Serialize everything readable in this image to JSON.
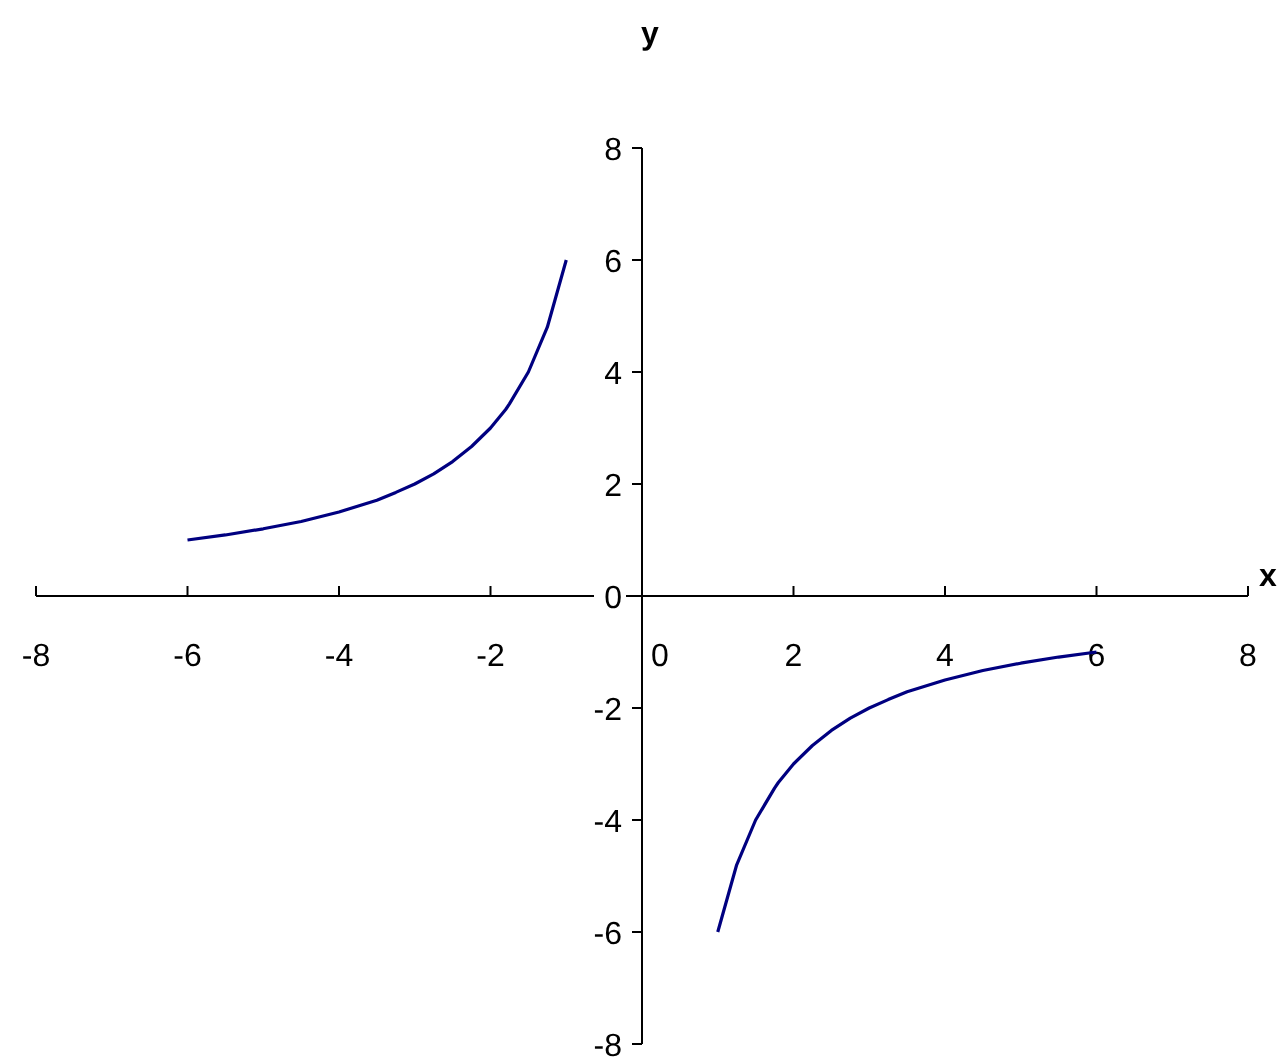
{
  "chart_data": {
    "type": "line",
    "xlabel": "x",
    "ylabel": "y",
    "xlim": [
      -8,
      8
    ],
    "xticks": [
      -8,
      -6,
      -4,
      -2,
      0,
      2,
      4,
      6,
      8
    ],
    "ylim": [
      -8,
      8
    ],
    "yticks": [
      -8,
      -6,
      -4,
      -2,
      0,
      2,
      4,
      6,
      8
    ],
    "grid": false,
    "marker": "none",
    "line_style": "solid",
    "series": [
      {
        "color": "#000080",
        "x": [
          -6,
          -5.5,
          -5,
          -4.5,
          -4,
          -3.5,
          -3.25,
          -3,
          -2.75,
          -2.5,
          -2.25,
          -2,
          -1.8,
          -1.75,
          -1.5,
          -1.25,
          -1
        ],
        "values": [
          1,
          1.09,
          1.2,
          1.33,
          1.5,
          1.71,
          1.85,
          2,
          2.18,
          2.4,
          2.67,
          3,
          3.33,
          3.43,
          4,
          4.8,
          6
        ]
      },
      {
        "color": "#000080",
        "x": [
          1,
          1.25,
          1.5,
          1.75,
          1.8,
          2,
          2.25,
          2.5,
          2.75,
          3,
          3.25,
          3.5,
          4,
          4.5,
          5,
          5.5,
          6
        ],
        "values": [
          -6,
          -4.8,
          -4,
          -3.43,
          -3.33,
          -3,
          -2.67,
          -2.4,
          -2.18,
          -2,
          -1.85,
          -1.71,
          -1.5,
          -1.33,
          -1.2,
          -1.09,
          -1
        ]
      }
    ]
  }
}
